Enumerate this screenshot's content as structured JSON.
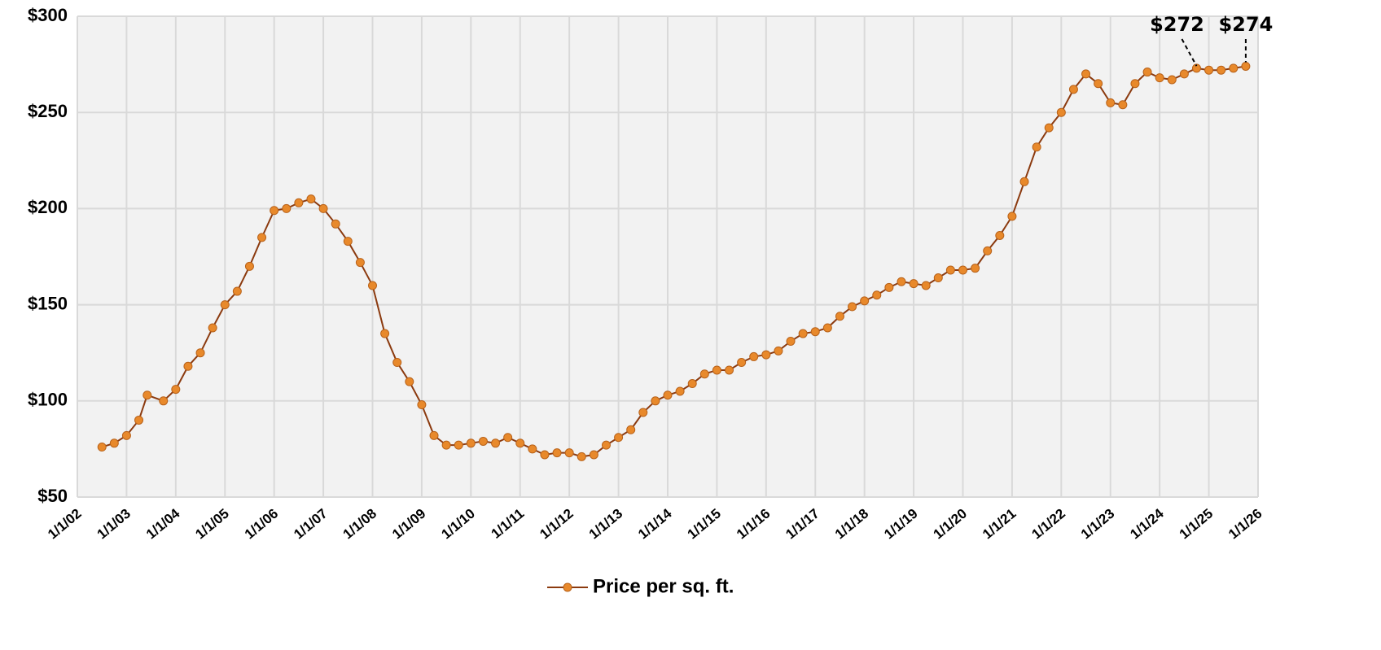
{
  "chart_data": {
    "type": "line",
    "series": [
      {
        "name": "Price per sq. ft.",
        "color": "#e8892b",
        "line_color": "#8b3a0f",
        "x": [
          2002.5,
          2002.75,
          2003.0,
          2003.25,
          2003.42,
          2003.75,
          2004.0,
          2004.25,
          2004.5,
          2004.75,
          2005.0,
          2005.25,
          2005.5,
          2005.75,
          2006.0,
          2006.25,
          2006.5,
          2006.75,
          2007.0,
          2007.25,
          2007.5,
          2007.75,
          2008.0,
          2008.25,
          2008.5,
          2008.75,
          2009.0,
          2009.25,
          2009.5,
          2009.75,
          2010.0,
          2010.25,
          2010.5,
          2010.75,
          2011.0,
          2011.25,
          2011.5,
          2011.75,
          2012.0,
          2012.25,
          2012.5,
          2012.75,
          2013.0,
          2013.25,
          2013.5,
          2013.75,
          2014.0,
          2014.25,
          2014.5,
          2014.75,
          2015.0,
          2015.25,
          2015.5,
          2015.75,
          2016.0,
          2016.25,
          2016.5,
          2016.75,
          2017.0,
          2017.25,
          2017.5,
          2017.75,
          2018.0,
          2018.25,
          2018.5,
          2018.75,
          2019.0,
          2019.25,
          2019.5,
          2019.75,
          2020.0,
          2020.25,
          2020.5,
          2020.75,
          2021.0,
          2021.25,
          2021.5,
          2021.75,
          2022.0,
          2022.25,
          2022.5,
          2022.75,
          2023.0,
          2023.25,
          2023.5,
          2023.75,
          2024.0,
          2024.25,
          2024.5,
          2024.75,
          2025.0,
          2025.25,
          2025.5,
          2025.75
        ],
        "values": [
          76,
          78,
          82,
          90,
          103,
          100,
          106,
          118,
          125,
          138,
          150,
          157,
          170,
          185,
          199,
          200,
          203,
          205,
          200,
          192,
          183,
          172,
          160,
          135,
          120,
          110,
          98,
          82,
          77,
          77,
          78,
          79,
          78,
          81,
          78,
          75,
          72,
          73,
          73,
          71,
          72,
          77,
          81,
          85,
          94,
          100,
          103,
          105,
          109,
          114,
          116,
          116,
          120,
          123,
          124,
          126,
          131,
          135,
          136,
          138,
          144,
          149,
          152,
          155,
          159,
          162,
          161,
          160,
          164,
          168,
          168,
          169,
          178,
          186,
          196,
          214,
          232,
          242,
          250,
          262,
          270,
          265,
          255,
          254,
          265,
          271,
          268,
          267,
          270,
          273,
          272,
          272,
          273,
          274
        ]
      }
    ],
    "annotations": [
      {
        "text": "$272",
        "x": 2024.75,
        "y": 272
      },
      {
        "text": "$274",
        "x": 2025.75,
        "y": 274
      }
    ],
    "xlim": [
      2002,
      2026
    ],
    "xticks": [
      {
        "value": 2002,
        "label": "1/1/02"
      },
      {
        "value": 2003,
        "label": "1/1/03"
      },
      {
        "value": 2004,
        "label": "1/1/04"
      },
      {
        "value": 2005,
        "label": "1/1/05"
      },
      {
        "value": 2006,
        "label": "1/1/06"
      },
      {
        "value": 2007,
        "label": "1/1/07"
      },
      {
        "value": 2008,
        "label": "1/1/08"
      },
      {
        "value": 2009,
        "label": "1/1/09"
      },
      {
        "value": 2010,
        "label": "1/1/10"
      },
      {
        "value": 2011,
        "label": "1/1/11"
      },
      {
        "value": 2012,
        "label": "1/1/12"
      },
      {
        "value": 2013,
        "label": "1/1/13"
      },
      {
        "value": 2014,
        "label": "1/1/14"
      },
      {
        "value": 2015,
        "label": "1/1/15"
      },
      {
        "value": 2016,
        "label": "1/1/16"
      },
      {
        "value": 2017,
        "label": "1/1/17"
      },
      {
        "value": 2018,
        "label": "1/1/18"
      },
      {
        "value": 2019,
        "label": "1/1/19"
      },
      {
        "value": 2020,
        "label": "1/1/20"
      },
      {
        "value": 2021,
        "label": "1/1/21"
      },
      {
        "value": 2022,
        "label": "1/1/22"
      },
      {
        "value": 2023,
        "label": "1/1/23"
      },
      {
        "value": 2024,
        "label": "1/1/24"
      },
      {
        "value": 2025,
        "label": "1/1/25"
      },
      {
        "value": 2026,
        "label": "1/1/26"
      }
    ],
    "ylim": [
      50,
      300
    ],
    "yticks": [
      {
        "value": 50,
        "label": "$50"
      },
      {
        "value": 100,
        "label": "$100"
      },
      {
        "value": 150,
        "label": "$150"
      },
      {
        "value": 200,
        "label": "$200"
      },
      {
        "value": 250,
        "label": "$250"
      },
      {
        "value": 300,
        "label": "$300"
      }
    ],
    "grid": true,
    "legend": "bottom"
  }
}
